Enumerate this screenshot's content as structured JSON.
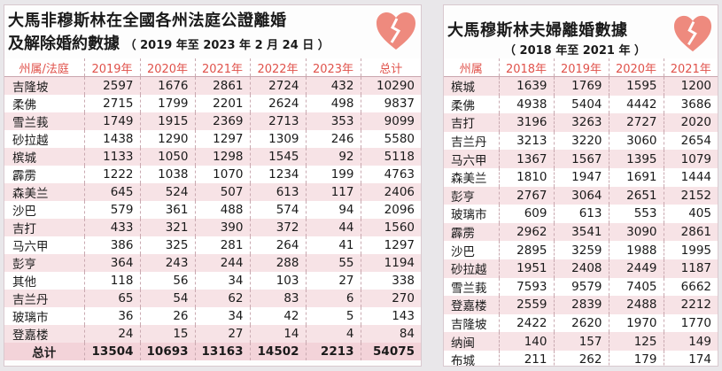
{
  "left": {
    "title_line1": "大馬非穆斯林在全國各州法庭公證離婚",
    "title_line2": "及解除婚約數據",
    "title_sub": "（ 2019 年至 2023 年 2 月 24 日 ）",
    "headers": [
      "州属/法庭",
      "2019年",
      "2020年",
      "2021年",
      "2022年",
      "2023年",
      "总计"
    ],
    "rows": [
      {
        "name": "吉隆坡",
        "values": [
          "2597",
          "1676",
          "2861",
          "2724",
          "432",
          "10290"
        ]
      },
      {
        "name": "柔佛",
        "values": [
          "2715",
          "1799",
          "2201",
          "2624",
          "498",
          "9837"
        ]
      },
      {
        "name": "雪兰莪",
        "values": [
          "1749",
          "1915",
          "2369",
          "2713",
          "353",
          "9099"
        ]
      },
      {
        "name": "砂拉越",
        "values": [
          "1438",
          "1290",
          "1297",
          "1309",
          "246",
          "5580"
        ]
      },
      {
        "name": "槟城",
        "values": [
          "1133",
          "1050",
          "1298",
          "1545",
          "92",
          "5118"
        ]
      },
      {
        "name": "霹雳",
        "values": [
          "1222",
          "1038",
          "1070",
          "1234",
          "199",
          "4763"
        ]
      },
      {
        "name": "森美兰",
        "values": [
          "645",
          "524",
          "507",
          "613",
          "117",
          "2406"
        ]
      },
      {
        "name": "沙巴",
        "values": [
          "579",
          "361",
          "488",
          "574",
          "94",
          "2096"
        ]
      },
      {
        "name": "吉打",
        "values": [
          "433",
          "321",
          "390",
          "372",
          "44",
          "1560"
        ]
      },
      {
        "name": "马六甲",
        "values": [
          "386",
          "325",
          "281",
          "264",
          "41",
          "1297"
        ]
      },
      {
        "name": "彭亨",
        "values": [
          "364",
          "243",
          "244",
          "288",
          "55",
          "1194"
        ]
      },
      {
        "name": "其他",
        "values": [
          "118",
          "56",
          "34",
          "103",
          "27",
          "338"
        ]
      },
      {
        "name": "吉兰丹",
        "values": [
          "65",
          "54",
          "62",
          "83",
          "6",
          "270"
        ]
      },
      {
        "name": "玻璃市",
        "values": [
          "36",
          "26",
          "34",
          "42",
          "5",
          "143"
        ]
      },
      {
        "name": "登嘉楼",
        "values": [
          "24",
          "15",
          "27",
          "14",
          "4",
          "84"
        ]
      }
    ],
    "total": {
      "name": "总计",
      "values": [
        "13504",
        "10693",
        "13163",
        "14502",
        "2213",
        "54075"
      ]
    }
  },
  "right": {
    "title_line1": "大馬穆斯林夫婦離婚數據",
    "title_sub": "（ 2018 年至 2021 年 ）",
    "headers": [
      "州属",
      "2018年",
      "2019年",
      "2020年",
      "2021年"
    ],
    "rows": [
      {
        "name": "槟城",
        "values": [
          "1639",
          "1769",
          "1595",
          "1200"
        ]
      },
      {
        "name": "柔佛",
        "values": [
          "4938",
          "5404",
          "4442",
          "3686"
        ]
      },
      {
        "name": "吉打",
        "values": [
          "3196",
          "3263",
          "2727",
          "2020"
        ]
      },
      {
        "name": "吉兰丹",
        "values": [
          "3213",
          "3220",
          "3060",
          "2654"
        ]
      },
      {
        "name": "马六甲",
        "values": [
          "1367",
          "1567",
          "1395",
          "1079"
        ]
      },
      {
        "name": "森美兰",
        "values": [
          "1810",
          "1947",
          "1691",
          "1444"
        ]
      },
      {
        "name": "彭亨",
        "values": [
          "2767",
          "3064",
          "2651",
          "2152"
        ]
      },
      {
        "name": "玻璃市",
        "values": [
          "609",
          "613",
          "553",
          "405"
        ]
      },
      {
        "name": "霹雳",
        "values": [
          "2962",
          "3541",
          "3090",
          "2861"
        ]
      },
      {
        "name": "沙巴",
        "values": [
          "2895",
          "3259",
          "1988",
          "1995"
        ]
      },
      {
        "name": "砂拉越",
        "values": [
          "1951",
          "2408",
          "2449",
          "1187"
        ]
      },
      {
        "name": "雪兰莪",
        "values": [
          "7593",
          "9579",
          "7405",
          "6662"
        ]
      },
      {
        "name": "登嘉楼",
        "values": [
          "2559",
          "2839",
          "2488",
          "2212"
        ]
      },
      {
        "name": "吉隆坡",
        "values": [
          "2422",
          "2620",
          "1970",
          "1770"
        ]
      },
      {
        "name": "纳闽",
        "values": [
          "140",
          "157",
          "125",
          "149"
        ]
      },
      {
        "name": "布城",
        "values": [
          "211",
          "262",
          "179",
          "174"
        ]
      }
    ]
  },
  "icons": {
    "heart": "broken-heart-icon",
    "heart_color": "#ee8a7e"
  },
  "colors": {
    "header_text": "#e0524b",
    "row_pink": "#f7e3e6",
    "total_row": "#f3d3d9"
  }
}
